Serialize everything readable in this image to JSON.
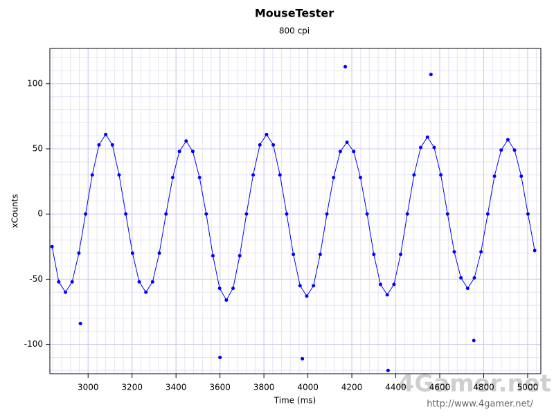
{
  "chart_data": {
    "type": "scatter",
    "title": "MouseTester",
    "subtitle": "800 cpi",
    "x_label": "Time (ms)",
    "y_label": "xCounts",
    "watermark": "4Gamer.net",
    "watermark_url": "http://www.4gamer.net/",
    "xlim": [
      2826,
      5060
    ],
    "ylim": [
      -122.5,
      127
    ],
    "xticks": [
      3000,
      3200,
      3400,
      3600,
      3800,
      4000,
      4200,
      4400,
      4600,
      4800,
      5000
    ],
    "yticks": [
      -100,
      -50,
      0,
      50,
      100
    ],
    "grid": true,
    "x_minor_step": 40,
    "y_minor_step": 10,
    "series": [
      {
        "color": "#0000ff",
        "line": true,
        "x": [
          2836,
          2866.5,
          2897,
          2927.5,
          2958,
          2988.5,
          3019,
          3049.5,
          3080,
          3110.5,
          3141,
          3171.5,
          3202,
          3232.5,
          3263,
          3293.5,
          3324,
          3354.5,
          3385,
          3415.5,
          3446,
          3476.5,
          3507,
          3537.5,
          3568,
          3598.5,
          3629,
          3659.5,
          3690,
          3720.5,
          3751,
          3781.5,
          3812,
          3842.5,
          3873,
          3903.5,
          3934,
          3964.5,
          3995,
          4025.5,
          4056,
          4086.5,
          4117,
          4147.5,
          4178,
          4208.5,
          4239,
          4269.5,
          4300,
          4330.5,
          4361,
          4391.5,
          4422,
          4452.5,
          4483,
          4513.5,
          4544,
          4574.5,
          4605,
          4635.5,
          4666,
          4696.5,
          4727,
          4757.5,
          4788,
          4818.5,
          4849,
          4879.5,
          4910,
          4940.5,
          4971,
          5001.5,
          5032
        ],
        "values": [
          -25,
          -52,
          -60,
          -52,
          -30,
          0,
          30,
          53,
          61,
          53,
          30,
          0,
          -30,
          -52,
          -60,
          -52,
          -30,
          0,
          28,
          48,
          56,
          48,
          28,
          0,
          -32,
          -57,
          -66,
          -57,
          -32,
          0,
          30,
          53,
          61,
          53,
          30,
          0,
          -31,
          -55,
          -63,
          -55,
          -31,
          0,
          28,
          48,
          55,
          48,
          28,
          0,
          -31,
          -54,
          -62,
          -54,
          -31,
          0,
          30,
          51,
          59,
          51,
          30,
          0,
          -29,
          -49,
          -57,
          -49,
          -29,
          0,
          29,
          49,
          57,
          49,
          29,
          0,
          -28
        ]
      },
      {
        "color": "#0000ff",
        "line": false,
        "x": [
          2965,
          3600,
          3975,
          4170,
          4365,
          4560,
          4755
        ],
        "values": [
          -84,
          -110,
          -111,
          113,
          -120,
          107,
          -97
        ]
      }
    ]
  }
}
